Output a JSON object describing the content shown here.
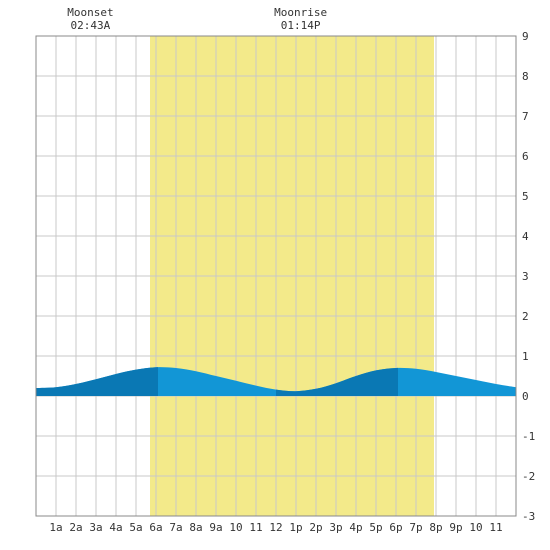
{
  "chart_data": {
    "type": "area",
    "title": "",
    "xlabel": "",
    "ylabel": "",
    "x_range_hours": [
      0,
      24
    ],
    "ylim": [
      -3,
      9
    ],
    "y_ticks": [
      -3,
      -2,
      -1,
      0,
      1,
      2,
      3,
      4,
      5,
      6,
      7,
      8,
      9
    ],
    "x_tick_labels": [
      "1a",
      "2a",
      "3a",
      "4a",
      "5a",
      "6a",
      "7a",
      "8a",
      "9a",
      "10",
      "11",
      "12",
      "1p",
      "2p",
      "3p",
      "4p",
      "5p",
      "6p",
      "7p",
      "8p",
      "9p",
      "10",
      "11"
    ],
    "grid": true,
    "daylight": {
      "start_hour": 5.7,
      "end_hour": 19.9,
      "color": "#f3ea8a"
    },
    "annotations": [
      {
        "name": "Moonset",
        "time": "02:43A",
        "hour": 2.72
      },
      {
        "name": "Moonrise",
        "time": "01:14P",
        "hour": 13.23
      }
    ],
    "series": [
      {
        "x": [
          0,
          1,
          2,
          3,
          4,
          5,
          6,
          7,
          8,
          9,
          10,
          11,
          12,
          13,
          14,
          15,
          16,
          17,
          18,
          19,
          20,
          21,
          22,
          23,
          24
        ],
        "values": [
          0.2,
          0.22,
          0.3,
          0.42,
          0.55,
          0.66,
          0.72,
          0.7,
          0.62,
          0.5,
          0.38,
          0.26,
          0.16,
          0.12,
          0.18,
          0.32,
          0.5,
          0.64,
          0.7,
          0.68,
          0.6,
          0.5,
          0.4,
          0.3,
          0.22
        ]
      }
    ],
    "colors": {
      "tide_light": "#1296d6",
      "tide_dark": "#0a78b4",
      "grid": "#c8c8c8",
      "border": "#888888"
    },
    "tide_dark_shading": [
      [
        0,
        6.1
      ],
      [
        12,
        18.1
      ]
    ]
  }
}
